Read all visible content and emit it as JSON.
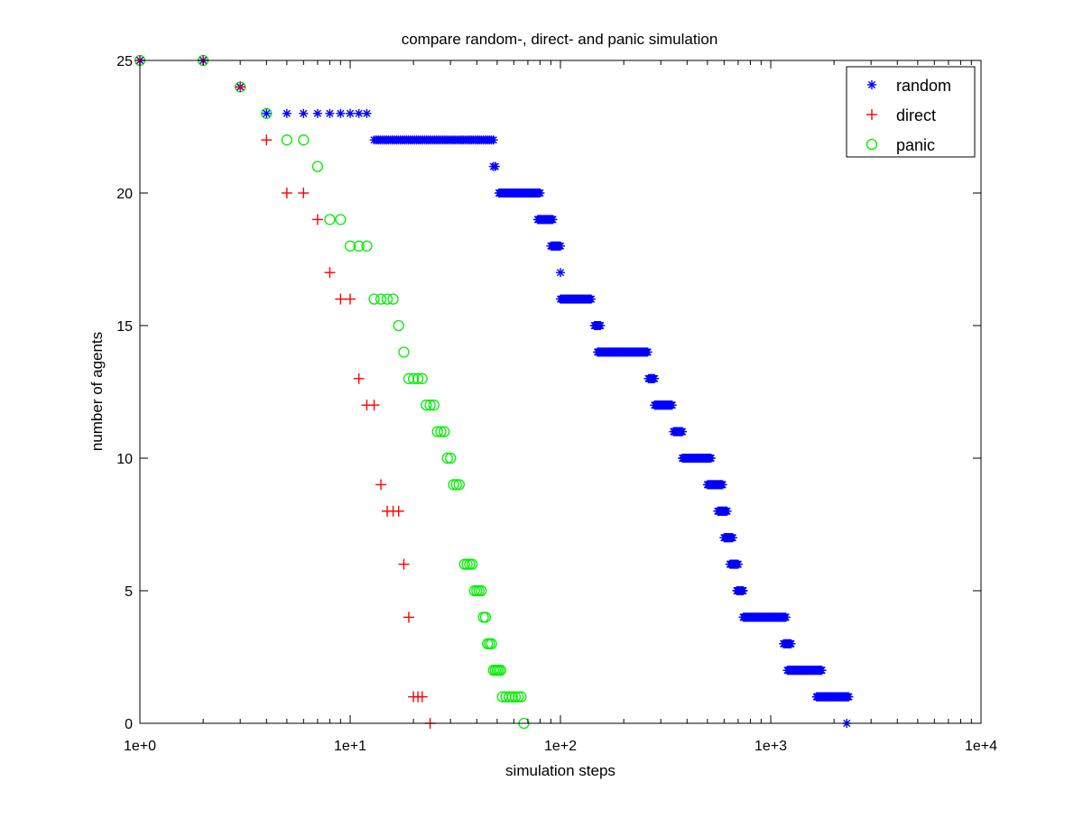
{
  "chart_data": {
    "type": "scatter",
    "title": "compare random-, direct- and panic simulation",
    "xlabel": "simulation steps",
    "ylabel": "number of agents",
    "xscale": "log",
    "xlim": [
      1,
      10000
    ],
    "ylim": [
      0,
      25
    ],
    "xticks": [
      1,
      10,
      100,
      1000,
      10000
    ],
    "xtick_labels": [
      "1e+0",
      "1e+1",
      "1e+2",
      "1e+3",
      "1e+4"
    ],
    "yticks": [
      0,
      5,
      10,
      15,
      20,
      25
    ],
    "ytick_labels": [
      "0",
      "5",
      "10",
      "15",
      "20",
      "25"
    ],
    "grid": false,
    "legend_position": "top-right",
    "series": [
      {
        "name": "random",
        "marker": "asterisk",
        "color": "#0000ff",
        "points": [
          [
            1,
            25
          ],
          [
            2,
            25
          ],
          [
            3,
            24
          ],
          [
            4,
            23
          ],
          [
            5,
            23
          ],
          [
            6,
            23
          ],
          [
            7,
            23
          ],
          [
            8,
            23
          ],
          [
            9,
            23
          ],
          [
            10,
            23
          ],
          [
            11,
            23
          ],
          [
            12,
            23
          ],
          {
            "y": 22,
            "x_range": [
              13,
              48
            ],
            "count": 60
          },
          [
            48,
            21
          ],
          [
            49,
            21
          ],
          {
            "y": 20,
            "x_range": [
              51,
              80
            ],
            "count": 40
          },
          {
            "y": 19,
            "x_range": [
              78,
              92
            ],
            "count": 20
          },
          {
            "y": 18,
            "x_range": [
              90,
              100
            ],
            "count": 14
          },
          [
            100,
            17
          ],
          {
            "y": 16,
            "x_range": [
              100,
              140
            ],
            "count": 30
          },
          {
            "y": 15,
            "x_range": [
              145,
              155
            ],
            "count": 8
          },
          {
            "y": 14,
            "x_range": [
              150,
              260
            ],
            "count": 70
          },
          {
            "y": 13,
            "x_range": [
              262,
              280
            ],
            "count": 10
          },
          {
            "y": 12,
            "x_range": [
              280,
              340
            ],
            "count": 30
          },
          {
            "y": 11,
            "x_range": [
              345,
              380
            ],
            "count": 16
          },
          {
            "y": 10,
            "x_range": [
              380,
              520
            ],
            "count": 50
          },
          {
            "y": 9,
            "x_range": [
              500,
              590
            ],
            "count": 30
          },
          {
            "y": 8,
            "x_range": [
              560,
              620
            ],
            "count": 18
          },
          {
            "y": 7,
            "x_range": [
              600,
              660
            ],
            "count": 16
          },
          {
            "y": 6,
            "x_range": [
              640,
              700
            ],
            "count": 14
          },
          {
            "y": 5,
            "x_range": [
              690,
              740
            ],
            "count": 14
          },
          {
            "y": 4,
            "x_range": [
              740,
              1180
            ],
            "count": 80
          },
          {
            "y": 3,
            "x_range": [
              1150,
              1250
            ],
            "count": 12
          },
          {
            "y": 2,
            "x_range": [
              1200,
              1750
            ],
            "count": 60
          },
          {
            "y": 1,
            "x_range": [
              1650,
              2350
            ],
            "count": 60
          },
          [
            2300,
            0
          ]
        ]
      },
      {
        "name": "direct",
        "marker": "plus",
        "color": "#ff0000",
        "points": [
          [
            1,
            25
          ],
          [
            2,
            25
          ],
          [
            3,
            24
          ],
          [
            4,
            22
          ],
          [
            5,
            20
          ],
          [
            6,
            20
          ],
          [
            7,
            19
          ],
          [
            8,
            17
          ],
          [
            9,
            16
          ],
          [
            10,
            16
          ],
          [
            11,
            13
          ],
          [
            12,
            12
          ],
          [
            13,
            12
          ],
          [
            14,
            9
          ],
          [
            15,
            8
          ],
          [
            16,
            8
          ],
          [
            17,
            8
          ],
          [
            18,
            6
          ],
          [
            19,
            4
          ],
          [
            20,
            1
          ],
          [
            21,
            1
          ],
          [
            22,
            1
          ],
          [
            24,
            0
          ]
        ]
      },
      {
        "name": "panic",
        "marker": "circle",
        "color": "#00ee00",
        "points": [
          [
            1,
            25
          ],
          [
            2,
            25
          ],
          [
            3,
            24
          ],
          [
            4,
            23
          ],
          [
            5,
            22
          ],
          [
            6,
            22
          ],
          [
            7,
            21
          ],
          [
            8,
            19
          ],
          [
            9,
            19
          ],
          [
            10,
            18
          ],
          [
            11,
            18
          ],
          [
            12,
            18
          ],
          [
            13,
            16
          ],
          [
            14,
            16
          ],
          [
            15,
            16
          ],
          [
            16,
            16
          ],
          [
            17,
            15
          ],
          [
            18,
            14
          ],
          [
            19,
            13
          ],
          [
            20,
            13
          ],
          [
            21,
            13
          ],
          [
            22,
            13
          ],
          [
            23,
            12
          ],
          [
            24,
            12
          ],
          [
            25,
            12
          ],
          [
            26,
            11
          ],
          [
            27,
            11
          ],
          [
            28,
            11
          ],
          [
            29,
            10
          ],
          [
            30,
            10
          ],
          [
            31,
            9
          ],
          [
            32,
            9
          ],
          [
            33,
            9
          ],
          [
            35,
            6
          ],
          [
            36,
            6
          ],
          [
            37,
            6
          ],
          [
            38,
            6
          ],
          [
            39,
            5
          ],
          [
            40,
            5
          ],
          [
            41,
            5
          ],
          [
            42,
            5
          ],
          [
            43,
            4
          ],
          [
            44,
            4
          ],
          [
            45,
            3
          ],
          [
            46,
            3
          ],
          [
            47,
            3
          ],
          [
            48,
            2
          ],
          [
            49,
            2
          ],
          [
            50,
            2
          ],
          [
            51,
            2
          ],
          [
            52,
            2
          ],
          [
            53,
            1
          ],
          [
            55,
            1
          ],
          [
            57,
            1
          ],
          [
            59,
            1
          ],
          [
            61,
            1
          ],
          [
            63,
            1
          ],
          [
            65,
            1
          ],
          [
            67,
            0
          ]
        ]
      }
    ]
  }
}
